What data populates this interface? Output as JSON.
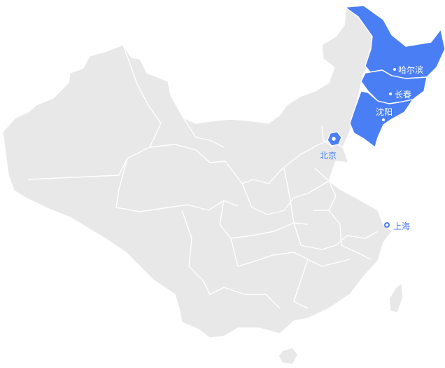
{
  "map": {
    "colors": {
      "land": "#e8e8e8",
      "highlight": "#4a7ef5",
      "border": "#ffffff",
      "label_on_highlight": "#ffffff",
      "label_on_land": "#4a7ef5"
    },
    "highlighted_regions": [
      "黑龙江",
      "吉林",
      "辽宁"
    ],
    "cities": [
      {
        "name": "哈尔滨",
        "marker": "dot",
        "on_highlight": true
      },
      {
        "name": "长春",
        "marker": "dot",
        "on_highlight": true
      },
      {
        "name": "沈阳",
        "marker": "dot",
        "on_highlight": true
      },
      {
        "name": "北京",
        "marker": "pin-icon",
        "on_highlight": false
      },
      {
        "name": "上海",
        "marker": "pin-icon",
        "on_highlight": false
      }
    ]
  }
}
